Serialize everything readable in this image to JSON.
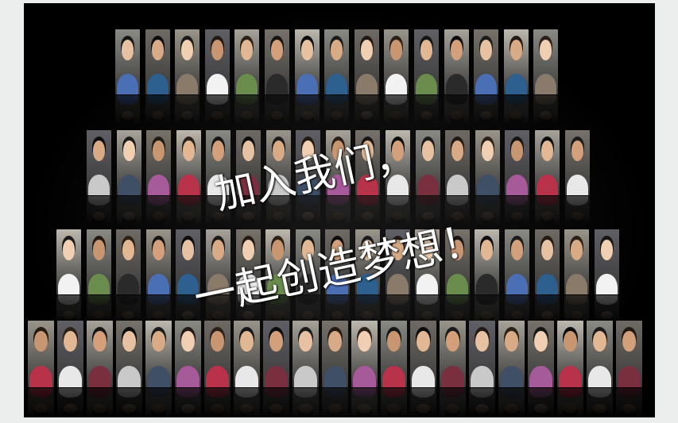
{
  "slogan": {
    "line1": "加入我们，",
    "line2": "一起创造梦想！"
  },
  "colors": {
    "background": "#000000",
    "frame": "#eceeee",
    "text": "#ffffff"
  },
  "photo_wall": {
    "rows": [
      {
        "name": "row-1",
        "photo_count": 15
      },
      {
        "name": "row-2",
        "photo_count": 17
      },
      {
        "name": "row-3",
        "photo_count": 19
      },
      {
        "name": "row-4",
        "photo_count": 21
      }
    ]
  }
}
